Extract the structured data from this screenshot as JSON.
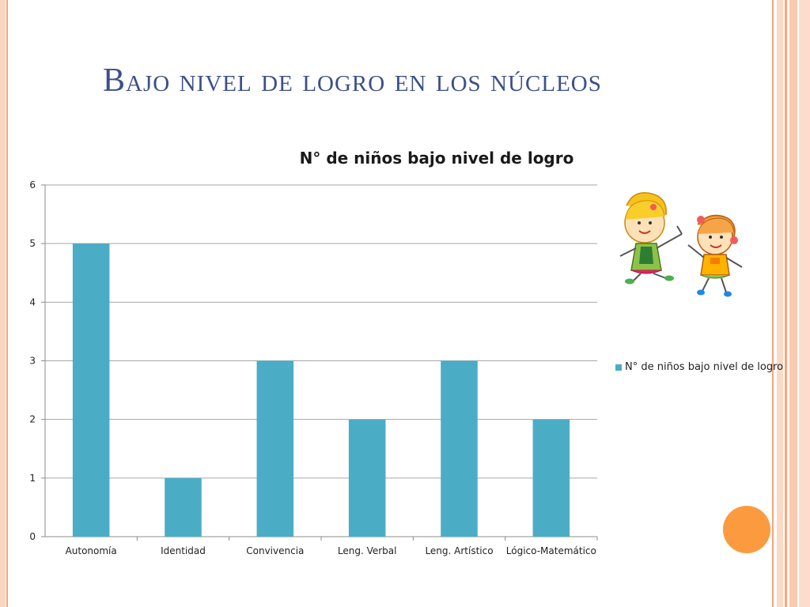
{
  "slide": {
    "title": "Bajo nivel de logro en los núcleos"
  },
  "colors": {
    "bar": "#4bacc6",
    "title": "#3c4f8a",
    "frame_accent": "#f6a47a",
    "dot": "#fb9a3e"
  },
  "decorations": {
    "illustration": "two-children-jumping",
    "circle": "orange-circle"
  },
  "chart_data": {
    "type": "bar",
    "title": "N° de niños bajo nivel de logro",
    "categories": [
      "Autonomía",
      "Identidad",
      "Convivencia",
      "Leng. Verbal",
      "Leng. Artístico",
      "Lógico-Matemático"
    ],
    "series": [
      {
        "name": "N° de niños bajo nivel de logro",
        "values": [
          5,
          1,
          3,
          2,
          3,
          2
        ]
      }
    ],
    "xlabel": "",
    "ylabel": "",
    "ylim": [
      0,
      6
    ],
    "yticks": [
      0,
      1,
      2,
      3,
      4,
      5,
      6
    ],
    "grid": true,
    "legend_position": "right"
  }
}
